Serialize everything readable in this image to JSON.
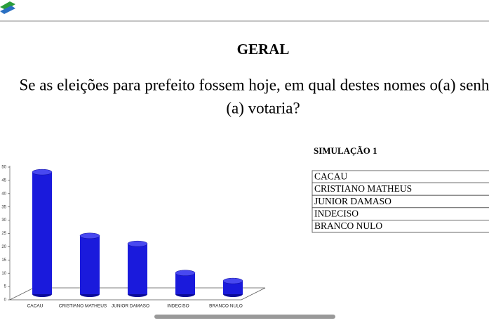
{
  "header": {
    "title": "GERAL",
    "question_line1": "Se as eleições para prefeito fossem hoje, em qual destes nomes o(a) senhor",
    "question_line2": "(a) votaria?"
  },
  "table": {
    "title": "SIMULAÇÃO 1",
    "rows": [
      "CACAU",
      "CRISTIANO MATHEUS",
      "JUNIOR DAMASO",
      "INDECISO",
      "BRANCO NULO"
    ]
  },
  "chart_data": {
    "type": "bar",
    "categories": [
      "CACAU",
      "CRISTIANO MATHEUS",
      "JUNIOR DAMASO",
      "INDECISO",
      "BRANCO NULO"
    ],
    "values": [
      46,
      22,
      19,
      8,
      5
    ],
    "color": "#1a1adc",
    "ylim": [
      0,
      50
    ],
    "yticks": [
      0,
      5,
      10,
      15,
      20,
      25,
      30,
      35,
      40,
      45,
      50
    ]
  }
}
